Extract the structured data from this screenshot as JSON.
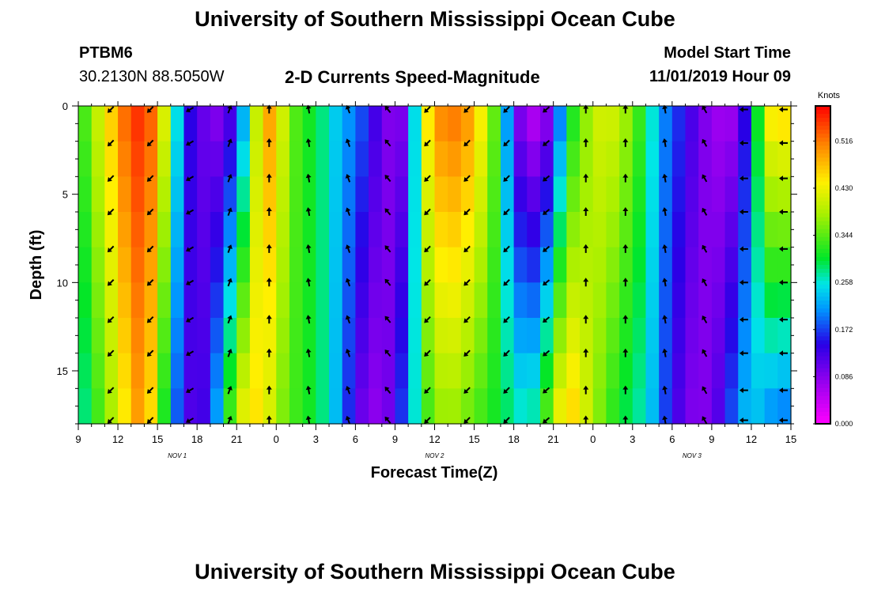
{
  "page": {
    "title_top": "University of Southern Mississippi Ocean Cube",
    "title_bottom": "University of Southern Mississippi Ocean Cube",
    "station_id": "PTBM6",
    "station_coords": "30.2130N 88.5050W",
    "plot_title": "2-D Currents Speed-Magnitude",
    "model_start_label": "Model Start Time",
    "model_start_value": "11/01/2019 Hour 09"
  },
  "chart_data": {
    "type": "heatmap",
    "title": "2-D Currents Speed-Magnitude",
    "xlabel": "Forecast Time(Z)",
    "ylabel": "Depth (ft)",
    "x_tick_labels": [
      "9",
      "12",
      "15",
      "18",
      "21",
      "0",
      "3",
      "6",
      "9",
      "12",
      "15",
      "18",
      "21",
      "0",
      "3",
      "6",
      "9",
      "12",
      "15"
    ],
    "x_tick_hours": [
      0,
      3,
      6,
      9,
      12,
      15,
      18,
      21,
      24,
      27,
      30,
      33,
      36,
      39,
      42,
      45,
      48,
      51,
      54
    ],
    "x_range_hours": [
      0,
      54
    ],
    "day_labels": [
      {
        "text": "NOV 1",
        "hour": 7.5
      },
      {
        "text": "NOV 2",
        "hour": 27
      },
      {
        "text": "NOV 3",
        "hour": 46.5
      }
    ],
    "y_tick_labels": [
      "0",
      "5",
      "10",
      "15"
    ],
    "y_tick_values": [
      0,
      5,
      10,
      15
    ],
    "y_range_ft": [
      0,
      18
    ],
    "colorbar": {
      "unit": "Knots",
      "range": [
        0.0,
        0.58
      ],
      "tick_labels": [
        "0.000",
        "0.086",
        "0.172",
        "0.258",
        "0.344",
        "0.430",
        "0.516"
      ],
      "tick_values": [
        0.0,
        0.086,
        0.172,
        0.258,
        0.344,
        0.43,
        0.516
      ]
    },
    "depth_levels_ft": [
      0,
      2,
      4,
      6,
      8,
      10,
      12,
      14,
      16,
      18
    ],
    "hours": [
      0,
      1,
      2,
      3,
      4,
      5,
      6,
      7,
      8,
      9,
      10,
      11,
      12,
      13,
      14,
      15,
      16,
      17,
      18,
      19,
      20,
      21,
      22,
      23,
      24,
      25,
      26,
      27,
      28,
      29,
      30,
      31,
      32,
      33,
      34,
      35,
      36,
      37,
      38,
      39,
      40,
      41,
      42,
      43,
      44,
      45,
      46,
      47,
      48,
      49,
      50,
      51,
      52,
      53,
      54
    ],
    "speed_profiles_knots_surface": [
      0.3,
      0.38,
      0.43,
      0.5,
      0.55,
      0.56,
      0.5,
      0.34,
      0.17,
      0.12,
      0.09,
      0.08,
      0.15,
      0.28,
      0.52,
      0.46,
      0.36,
      0.32,
      0.3,
      0.26,
      0.22,
      0.2,
      0.16,
      0.1,
      0.08,
      0.1,
      0.4,
      0.5,
      0.52,
      0.52,
      0.48,
      0.4,
      0.3,
      0.12,
      0.05,
      0.05,
      0.1,
      0.28,
      0.34,
      0.4,
      0.42,
      0.4,
      0.36,
      0.3,
      0.22,
      0.18,
      0.15,
      0.1,
      0.08,
      0.06,
      0.08,
      0.2,
      0.42,
      0.48,
      0.44
    ],
    "speed_profiles_knots_bottom": [
      0.26,
      0.3,
      0.36,
      0.4,
      0.48,
      0.5,
      0.4,
      0.22,
      0.14,
      0.1,
      0.16,
      0.28,
      0.4,
      0.46,
      0.44,
      0.38,
      0.34,
      0.32,
      0.3,
      0.26,
      0.2,
      0.12,
      0.08,
      0.08,
      0.12,
      0.22,
      0.3,
      0.36,
      0.38,
      0.36,
      0.34,
      0.32,
      0.3,
      0.28,
      0.26,
      0.3,
      0.4,
      0.48,
      0.44,
      0.38,
      0.34,
      0.3,
      0.28,
      0.26,
      0.2,
      0.14,
      0.1,
      0.08,
      0.1,
      0.14,
      0.22,
      0.24,
      0.22,
      0.18,
      0.2
    ],
    "arrow_rows_ft": [
      0.2,
      2.1,
      4.1,
      6.0,
      8.1,
      10.0,
      12.1,
      14.0,
      16.1,
      17.8
    ],
    "arrow_cols_hours": [
      3,
      6,
      9,
      12,
      15,
      18,
      21,
      24,
      27,
      30,
      33,
      36,
      39,
      42,
      45,
      48,
      51,
      54
    ],
    "arrow_directions_deg_from_north": [
      225,
      225,
      240,
      20,
      0,
      350,
      340,
      320,
      225,
      225,
      225,
      230,
      0,
      0,
      350,
      330,
      270,
      270
    ]
  }
}
